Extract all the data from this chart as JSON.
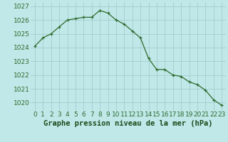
{
  "x": [
    0,
    1,
    2,
    3,
    4,
    5,
    6,
    7,
    8,
    9,
    10,
    11,
    12,
    13,
    14,
    15,
    16,
    17,
    18,
    19,
    20,
    21,
    22,
    23
  ],
  "y": [
    1024.1,
    1024.7,
    1025.0,
    1025.5,
    1026.0,
    1026.1,
    1026.2,
    1026.2,
    1026.7,
    1026.5,
    1026.0,
    1025.7,
    1025.2,
    1024.7,
    1023.2,
    1022.4,
    1022.4,
    1022.0,
    1021.9,
    1021.5,
    1021.3,
    1020.9,
    1020.2,
    1019.8
  ],
  "line_color": "#2d6a2d",
  "marker_color": "#2d6a2d",
  "bg_color": "#c0e8e8",
  "grid_color": "#a0c8c8",
  "xlabel": "Graphe pression niveau de la mer (hPa)",
  "xlabel_color": "#1a4a1a",
  "tick_color": "#2d6a2d",
  "ylim": [
    1019.4,
    1027.3
  ],
  "yticks": [
    1020,
    1021,
    1022,
    1023,
    1024,
    1025,
    1026,
    1027
  ],
  "xticks": [
    0,
    1,
    2,
    3,
    4,
    5,
    6,
    7,
    8,
    9,
    10,
    11,
    12,
    13,
    14,
    15,
    16,
    17,
    18,
    19,
    20,
    21,
    22,
    23
  ],
  "font_size_xlabel": 7.5,
  "font_size_ticks": 6.5
}
